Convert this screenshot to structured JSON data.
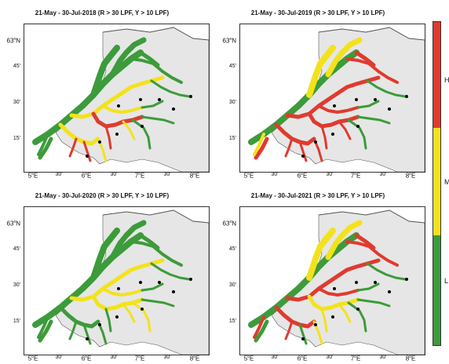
{
  "panels": [
    {
      "title": "21-May - 30-Jul-2018 (R > 30 LPF, Y > 10 LPF)",
      "scheme": "2018"
    },
    {
      "title": "21-May - 30-Jul-2019 (R > 30 LPF, Y > 10 LPF)",
      "scheme": "2019"
    },
    {
      "title": "21-May - 30-Jul-2020 (R > 30 LPF, Y > 10 LPF)",
      "scheme": "2020"
    },
    {
      "title": "21-May - 30-Jul-2021 (R > 30 LPF, Y > 10 LPF)",
      "scheme": "2021"
    }
  ],
  "axes": {
    "lat_top": "63",
    "lat_top_suffix": "N",
    "lat_minutes": [
      "45'",
      "30'",
      "15'"
    ],
    "lon_deg": [
      "5",
      "6",
      "7",
      "8"
    ],
    "lon_suffix": "E",
    "lon_minutes": "30'",
    "degree_symbol": "o"
  },
  "legend": {
    "levels": [
      {
        "label": "H",
        "color": "#e03a2f"
      },
      {
        "label": "M",
        "color": "#f3e21b"
      },
      {
        "label": "L",
        "color": "#3c9b3a"
      }
    ]
  },
  "colors": {
    "land": "#e6e6e6",
    "coast": "#555555",
    "green": "#3c9b3a",
    "yellow": "#f3e21b",
    "red": "#e03a2f"
  }
}
